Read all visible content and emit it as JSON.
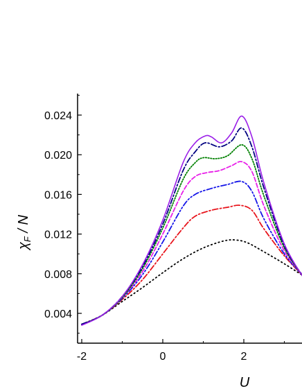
{
  "chart_data": {
    "type": "line",
    "title": "",
    "xlabel": "U",
    "ylabel": {
      "symbol": "χ",
      "subscript": "F",
      "rest": " / N"
    },
    "xlim": [
      -2.1,
      3.5
    ],
    "ylim": [
      0.0017,
      0.0262
    ],
    "xticks": [
      -2,
      0,
      2
    ],
    "xtick_labels": [
      "-2",
      "0",
      "2"
    ],
    "yticks": [
      0.004,
      0.008,
      0.012,
      0.016,
      0.02,
      0.024
    ],
    "ytick_labels": [
      "0.004",
      "0.008",
      "0.012",
      "0.016",
      "0.020",
      "0.024"
    ],
    "grid": false,
    "legend": "none",
    "series": [
      {
        "color": "#000000",
        "dash": "dot",
        "points": [
          [
            -2.0,
            0.0029
          ],
          [
            -1.5,
            0.0038
          ],
          [
            -1.0,
            0.0052
          ],
          [
            -0.5,
            0.0066
          ],
          [
            0.0,
            0.0081
          ],
          [
            0.5,
            0.0095
          ],
          [
            1.0,
            0.0106
          ],
          [
            1.5,
            0.0113
          ],
          [
            1.8,
            0.0114
          ],
          [
            2.1,
            0.0111
          ],
          [
            2.5,
            0.0102
          ],
          [
            3.0,
            0.009
          ],
          [
            3.5,
            0.0077
          ]
        ]
      },
      {
        "color": "#e8141c",
        "dash": "dashdot",
        "points": [
          [
            -2.0,
            0.0029
          ],
          [
            -1.5,
            0.0038
          ],
          [
            -1.0,
            0.0054
          ],
          [
            -0.5,
            0.0074
          ],
          [
            0.0,
            0.01
          ],
          [
            0.5,
            0.0126
          ],
          [
            0.8,
            0.0138
          ],
          [
            1.2,
            0.0144
          ],
          [
            1.6,
            0.0147
          ],
          [
            1.9,
            0.0149
          ],
          [
            2.2,
            0.0144
          ],
          [
            2.5,
            0.0125
          ],
          [
            3.0,
            0.0098
          ],
          [
            3.5,
            0.0076
          ]
        ]
      },
      {
        "color": "#1414e8",
        "dash": "dashdotdot",
        "points": [
          [
            -2.0,
            0.0029
          ],
          [
            -1.5,
            0.0038
          ],
          [
            -1.0,
            0.0055
          ],
          [
            -0.5,
            0.0079
          ],
          [
            0.0,
            0.0112
          ],
          [
            0.5,
            0.0148
          ],
          [
            0.8,
            0.016
          ],
          [
            1.2,
            0.0166
          ],
          [
            1.6,
            0.017
          ],
          [
            1.95,
            0.0173
          ],
          [
            2.2,
            0.0163
          ],
          [
            2.5,
            0.0135
          ],
          [
            3.0,
            0.01
          ],
          [
            3.5,
            0.0076
          ]
        ]
      },
      {
        "color": "#e81ee8",
        "dash": "dash",
        "points": [
          [
            -2.0,
            0.0029
          ],
          [
            -1.5,
            0.0038
          ],
          [
            -1.0,
            0.0056
          ],
          [
            -0.5,
            0.0082
          ],
          [
            0.0,
            0.012
          ],
          [
            0.5,
            0.0163
          ],
          [
            0.8,
            0.0178
          ],
          [
            1.1,
            0.0182
          ],
          [
            1.4,
            0.0184
          ],
          [
            1.7,
            0.0189
          ],
          [
            1.95,
            0.0193
          ],
          [
            2.2,
            0.0183
          ],
          [
            2.5,
            0.0148
          ],
          [
            3.0,
            0.0103
          ],
          [
            3.5,
            0.0076
          ]
        ]
      },
      {
        "color": "#008000",
        "dash": "dotfine",
        "points": [
          [
            -2.0,
            0.0029
          ],
          [
            -1.5,
            0.0038
          ],
          [
            -1.0,
            0.0056
          ],
          [
            -0.5,
            0.0085
          ],
          [
            0.0,
            0.0126
          ],
          [
            0.5,
            0.0175
          ],
          [
            0.8,
            0.0192
          ],
          [
            1.0,
            0.0197
          ],
          [
            1.3,
            0.0196
          ],
          [
            1.6,
            0.0199
          ],
          [
            1.95,
            0.021
          ],
          [
            2.2,
            0.0196
          ],
          [
            2.5,
            0.0158
          ],
          [
            3.0,
            0.0106
          ],
          [
            3.5,
            0.0075
          ]
        ]
      },
      {
        "color": "#000080",
        "dash": "dashdot",
        "points": [
          [
            -2.0,
            0.0029
          ],
          [
            -1.5,
            0.0038
          ],
          [
            -1.0,
            0.0057
          ],
          [
            -0.5,
            0.0087
          ],
          [
            0.0,
            0.013
          ],
          [
            0.5,
            0.0184
          ],
          [
            0.8,
            0.0203
          ],
          [
            1.05,
            0.0212
          ],
          [
            1.4,
            0.0208
          ],
          [
            1.7,
            0.0214
          ],
          [
            1.95,
            0.0227
          ],
          [
            2.2,
            0.0208
          ],
          [
            2.5,
            0.0166
          ],
          [
            3.0,
            0.0108
          ],
          [
            3.5,
            0.0075
          ]
        ]
      },
      {
        "color": "#9a1ee8",
        "dash": "solid",
        "points": [
          [
            -2.0,
            0.0028
          ],
          [
            -1.5,
            0.0038
          ],
          [
            -1.0,
            0.0057
          ],
          [
            -0.5,
            0.0089
          ],
          [
            0.0,
            0.0134
          ],
          [
            0.5,
            0.0192
          ],
          [
            0.8,
            0.0212
          ],
          [
            1.05,
            0.0219
          ],
          [
            1.2,
            0.0218
          ],
          [
            1.45,
            0.0212
          ],
          [
            1.7,
            0.0222
          ],
          [
            1.95,
            0.0239
          ],
          [
            2.2,
            0.0218
          ],
          [
            2.5,
            0.0171
          ],
          [
            3.0,
            0.011
          ],
          [
            3.5,
            0.0074
          ]
        ]
      }
    ]
  }
}
